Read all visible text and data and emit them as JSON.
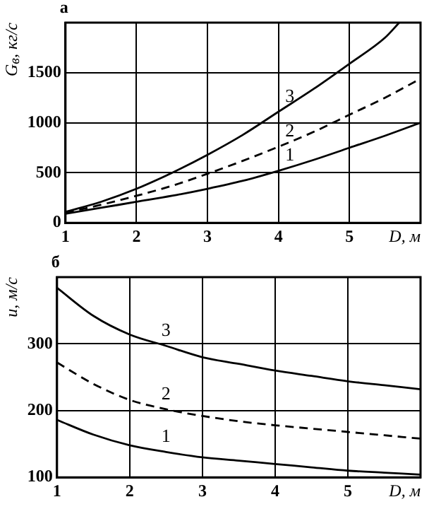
{
  "chart_data": [
    {
      "type": "line",
      "title": "а",
      "xlabel": "D, м",
      "ylabel": "G$_{в}$, кг/с",
      "xlim": [
        1,
        6
      ],
      "xticks": [
        1,
        2,
        3,
        4,
        5
      ],
      "ylim": [
        0,
        2000
      ],
      "yticks": [
        0,
        500,
        1000,
        1500
      ],
      "grid": true,
      "legend": false,
      "marker": "none",
      "series": [
        {
          "name": "1",
          "color": "#000000",
          "line_style": "solid",
          "x": [
            1,
            1.5,
            2,
            2.5,
            3,
            3.5,
            4,
            4.5,
            5,
            5.5,
            6
          ],
          "values": [
            90,
            150,
            210,
            270,
            340,
            420,
            520,
            630,
            750,
            870,
            1000
          ]
        },
        {
          "name": "2",
          "color": "#000000",
          "line_style": "dashed",
          "x": [
            1,
            1.5,
            2,
            2.5,
            3,
            3.5,
            4,
            4.5,
            5,
            5.5,
            6
          ],
          "values": [
            100,
            180,
            270,
            370,
            490,
            620,
            760,
            910,
            1080,
            1250,
            1440
          ]
        },
        {
          "name": "3",
          "color": "#000000",
          "line_style": "solid",
          "x": [
            1,
            1.5,
            2,
            2.5,
            3,
            3.5,
            4,
            4.5,
            5,
            5.5,
            5.7
          ],
          "values": [
            110,
            210,
            340,
            500,
            680,
            880,
            1110,
            1340,
            1590,
            1850,
            2000
          ]
        }
      ]
    },
    {
      "type": "line",
      "title": "б",
      "xlabel": "D, м",
      "ylabel": "u, м/с",
      "xlim": [
        1,
        6
      ],
      "xticks": [
        1,
        2,
        3,
        4,
        5
      ],
      "ylim": [
        100,
        400
      ],
      "yticks": [
        100,
        200,
        300
      ],
      "grid": true,
      "legend": false,
      "marker": "none",
      "series": [
        {
          "name": "1",
          "color": "#000000",
          "line_style": "solid",
          "x": [
            1,
            1.5,
            2,
            2.5,
            3,
            3.5,
            4,
            4.5,
            5,
            5.5,
            6
          ],
          "values": [
            186,
            164,
            148,
            138,
            130,
            125,
            120,
            115,
            110,
            107,
            104
          ]
        },
        {
          "name": "2",
          "color": "#000000",
          "line_style": "dashed",
          "x": [
            1,
            1.5,
            2,
            2.5,
            3,
            3.5,
            4,
            4.5,
            5,
            5.5,
            6
          ],
          "values": [
            272,
            240,
            216,
            202,
            192,
            184,
            178,
            173,
            168,
            163,
            158
          ]
        },
        {
          "name": "3",
          "color": "#000000",
          "line_style": "solid",
          "x": [
            1,
            1.5,
            2,
            2.5,
            3,
            3.5,
            4,
            4.5,
            5,
            5.5,
            6
          ],
          "values": [
            384,
            342,
            314,
            297,
            280,
            270,
            260,
            252,
            244,
            238,
            232
          ]
        }
      ]
    }
  ]
}
